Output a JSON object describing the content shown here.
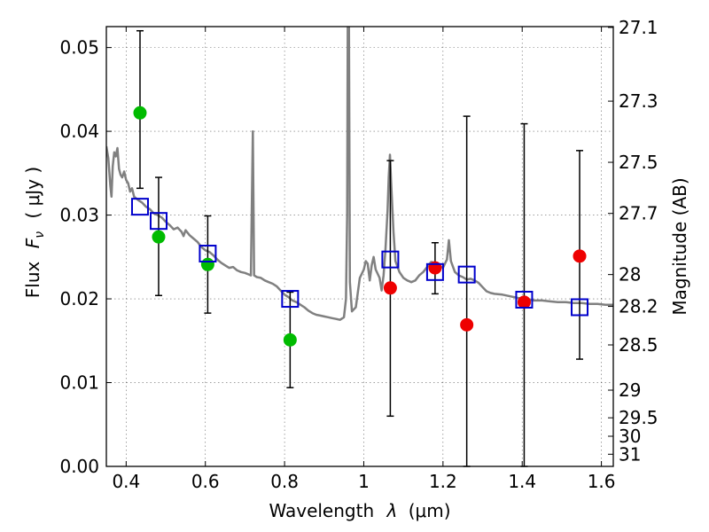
{
  "chart_data": {
    "type": "scatter",
    "xlabel_main": "Wavelength",
    "xlabel_sym": "λ",
    "xlabel_unit": "(μm)",
    "ylabel_main": "Flux",
    "ylabel_sym": "F",
    "ylabel_sub": "ν",
    "ylabel_unit": "( μJy )",
    "y2label": "Magnitude (AB)",
    "xlim": [
      0.35,
      1.63
    ],
    "ylim": [
      0.0,
      0.0525
    ],
    "x_ticks": [
      0.4,
      0.6,
      0.8,
      1.0,
      1.2,
      1.4,
      1.6
    ],
    "x_tick_labels": [
      "0.4",
      "0.6",
      "0.8",
      "1",
      "1.2",
      "1.4",
      "1.6"
    ],
    "y_ticks": [
      0.0,
      0.01,
      0.02,
      0.03,
      0.04,
      0.05
    ],
    "y_tick_labels": [
      "0.00",
      "0.01",
      "0.02",
      "0.03",
      "0.04",
      "0.05"
    ],
    "mag_ticks": [
      {
        "label": "27.1",
        "flux": 0.0524
      },
      {
        "label": "27.3",
        "flux": 0.0436
      },
      {
        "label": "27.5",
        "flux": 0.0363
      },
      {
        "label": "27.7",
        "flux": 0.0302
      },
      {
        "label": "28",
        "flux": 0.0229
      },
      {
        "label": "28.2",
        "flux": 0.0191
      },
      {
        "label": "28.5",
        "flux": 0.0145
      },
      {
        "label": "29",
        "flux": 0.0091
      },
      {
        "label": "29.5",
        "flux": 0.0058
      },
      {
        "label": "30",
        "flux": 0.0036
      },
      {
        "label": "31",
        "flux": 0.00145
      }
    ],
    "grid": true,
    "colors": {
      "green": "#00bb00",
      "red": "#ee0000",
      "model_square": "#0000cc",
      "spectrum": "#808080",
      "errorbar": "#000000"
    },
    "green_points": [
      {
        "x": 0.435,
        "y": 0.0422
      },
      {
        "x": 0.482,
        "y": 0.0274
      },
      {
        "x": 0.606,
        "y": 0.0241
      },
      {
        "x": 0.814,
        "y": 0.0151
      }
    ],
    "red_points": [
      {
        "x": 1.067,
        "y": 0.0213
      },
      {
        "x": 1.18,
        "y": 0.0237
      },
      {
        "x": 1.26,
        "y": 0.0169
      },
      {
        "x": 1.405,
        "y": 0.0196
      },
      {
        "x": 1.545,
        "y": 0.0251
      }
    ],
    "errorbars": [
      {
        "x": 0.435,
        "low": 0.0332,
        "high": 0.052
      },
      {
        "x": 0.482,
        "low": 0.0204,
        "high": 0.0345
      },
      {
        "x": 0.606,
        "low": 0.0183,
        "high": 0.0299
      },
      {
        "x": 0.814,
        "low": 0.0094,
        "high": 0.0208
      },
      {
        "x": 1.067,
        "low": 0.006,
        "high": 0.0365
      },
      {
        "x": 1.18,
        "low": 0.0206,
        "high": 0.0267
      },
      {
        "x": 1.26,
        "low": 0.0,
        "high": 0.0418
      },
      {
        "x": 1.405,
        "low": 0.0,
        "high": 0.0409
      },
      {
        "x": 1.545,
        "low": 0.0128,
        "high": 0.0377
      }
    ],
    "model_points": [
      {
        "x": 0.435,
        "y": 0.031
      },
      {
        "x": 0.482,
        "y": 0.0293
      },
      {
        "x": 0.606,
        "y": 0.0254
      },
      {
        "x": 0.814,
        "y": 0.02
      },
      {
        "x": 1.067,
        "y": 0.0247
      },
      {
        "x": 1.18,
        "y": 0.0232
      },
      {
        "x": 1.26,
        "y": 0.0229
      },
      {
        "x": 1.405,
        "y": 0.0199
      },
      {
        "x": 1.545,
        "y": 0.019
      }
    ],
    "spectrum": [
      [
        0.35,
        0.0382
      ],
      [
        0.355,
        0.0368
      ],
      [
        0.36,
        0.0335
      ],
      [
        0.363,
        0.0322
      ],
      [
        0.366,
        0.0358
      ],
      [
        0.37,
        0.0375
      ],
      [
        0.374,
        0.037
      ],
      [
        0.378,
        0.038
      ],
      [
        0.382,
        0.0355
      ],
      [
        0.386,
        0.0348
      ],
      [
        0.39,
        0.0345
      ],
      [
        0.395,
        0.0352
      ],
      [
        0.4,
        0.0342
      ],
      [
        0.405,
        0.0338
      ],
      [
        0.41,
        0.0328
      ],
      [
        0.415,
        0.0332
      ],
      [
        0.42,
        0.0322
      ],
      [
        0.43,
        0.0318
      ],
      [
        0.44,
        0.0315
      ],
      [
        0.45,
        0.031
      ],
      [
        0.46,
        0.0307
      ],
      [
        0.47,
        0.0302
      ],
      [
        0.48,
        0.03
      ],
      [
        0.49,
        0.0297
      ],
      [
        0.5,
        0.0292
      ],
      [
        0.51,
        0.0288
      ],
      [
        0.52,
        0.0283
      ],
      [
        0.53,
        0.0285
      ],
      [
        0.54,
        0.028
      ],
      [
        0.545,
        0.0275
      ],
      [
        0.55,
        0.0282
      ],
      [
        0.56,
        0.0276
      ],
      [
        0.57,
        0.0272
      ],
      [
        0.58,
        0.0268
      ],
      [
        0.59,
        0.0262
      ],
      [
        0.6,
        0.0258
      ],
      [
        0.61,
        0.0256
      ],
      [
        0.62,
        0.0252
      ],
      [
        0.63,
        0.0247
      ],
      [
        0.64,
        0.0243
      ],
      [
        0.65,
        0.024
      ],
      [
        0.66,
        0.0237
      ],
      [
        0.67,
        0.0238
      ],
      [
        0.68,
        0.0234
      ],
      [
        0.69,
        0.0232
      ],
      [
        0.7,
        0.0231
      ],
      [
        0.71,
        0.0229
      ],
      [
        0.715,
        0.0228
      ],
      [
        0.72,
        0.04
      ],
      [
        0.723,
        0.0228
      ],
      [
        0.73,
        0.0226
      ],
      [
        0.74,
        0.0225
      ],
      [
        0.75,
        0.0222
      ],
      [
        0.76,
        0.022
      ],
      [
        0.77,
        0.0218
      ],
      [
        0.78,
        0.0215
      ],
      [
        0.79,
        0.021
      ],
      [
        0.8,
        0.0205
      ],
      [
        0.81,
        0.0202
      ],
      [
        0.82,
        0.0198
      ],
      [
        0.83,
        0.0196
      ],
      [
        0.84,
        0.0193
      ],
      [
        0.85,
        0.019
      ],
      [
        0.86,
        0.0186
      ],
      [
        0.87,
        0.0183
      ],
      [
        0.88,
        0.0181
      ],
      [
        0.89,
        0.018
      ],
      [
        0.9,
        0.0179
      ],
      [
        0.91,
        0.0178
      ],
      [
        0.92,
        0.0177
      ],
      [
        0.93,
        0.0176
      ],
      [
        0.94,
        0.0175
      ],
      [
        0.95,
        0.0178
      ],
      [
        0.955,
        0.02
      ],
      [
        0.958,
        0.03
      ],
      [
        0.96,
        0.06
      ],
      [
        0.962,
        0.06
      ],
      [
        0.965,
        0.022
      ],
      [
        0.97,
        0.0185
      ],
      [
        0.98,
        0.019
      ],
      [
        0.99,
        0.0225
      ],
      [
        1.0,
        0.0235
      ],
      [
        1.005,
        0.0245
      ],
      [
        1.01,
        0.0242
      ],
      [
        1.015,
        0.0222
      ],
      [
        1.02,
        0.024
      ],
      [
        1.025,
        0.025
      ],
      [
        1.03,
        0.0235
      ],
      [
        1.04,
        0.0225
      ],
      [
        1.045,
        0.021
      ],
      [
        1.05,
        0.0228
      ],
      [
        1.055,
        0.026
      ],
      [
        1.06,
        0.0305
      ],
      [
        1.063,
        0.0345
      ],
      [
        1.066,
        0.0372
      ],
      [
        1.069,
        0.034
      ],
      [
        1.075,
        0.028
      ],
      [
        1.08,
        0.0245
      ],
      [
        1.09,
        0.0232
      ],
      [
        1.1,
        0.0225
      ],
      [
        1.11,
        0.0222
      ],
      [
        1.12,
        0.022
      ],
      [
        1.13,
        0.0222
      ],
      [
        1.14,
        0.0228
      ],
      [
        1.15,
        0.0232
      ],
      [
        1.16,
        0.0238
      ],
      [
        1.17,
        0.0244
      ],
      [
        1.18,
        0.0243
      ],
      [
        1.19,
        0.024
      ],
      [
        1.2,
        0.0237
      ],
      [
        1.21,
        0.0247
      ],
      [
        1.215,
        0.027
      ],
      [
        1.22,
        0.0245
      ],
      [
        1.23,
        0.0232
      ],
      [
        1.24,
        0.0228
      ],
      [
        1.25,
        0.0226
      ],
      [
        1.26,
        0.0223
      ],
      [
        1.27,
        0.0224
      ],
      [
        1.28,
        0.0222
      ],
      [
        1.29,
        0.0219
      ],
      [
        1.3,
        0.0214
      ],
      [
        1.31,
        0.0209
      ],
      [
        1.32,
        0.0207
      ],
      [
        1.33,
        0.0206
      ],
      [
        1.35,
        0.0205
      ],
      [
        1.37,
        0.0203
      ],
      [
        1.39,
        0.0201
      ],
      [
        1.41,
        0.02
      ],
      [
        1.43,
        0.0198
      ],
      [
        1.45,
        0.0198
      ],
      [
        1.47,
        0.0197
      ],
      [
        1.49,
        0.0196
      ],
      [
        1.51,
        0.0196
      ],
      [
        1.53,
        0.0195
      ],
      [
        1.55,
        0.0195
      ],
      [
        1.57,
        0.0194
      ],
      [
        1.59,
        0.0194
      ],
      [
        1.61,
        0.0193
      ],
      [
        1.63,
        0.0193
      ]
    ]
  }
}
